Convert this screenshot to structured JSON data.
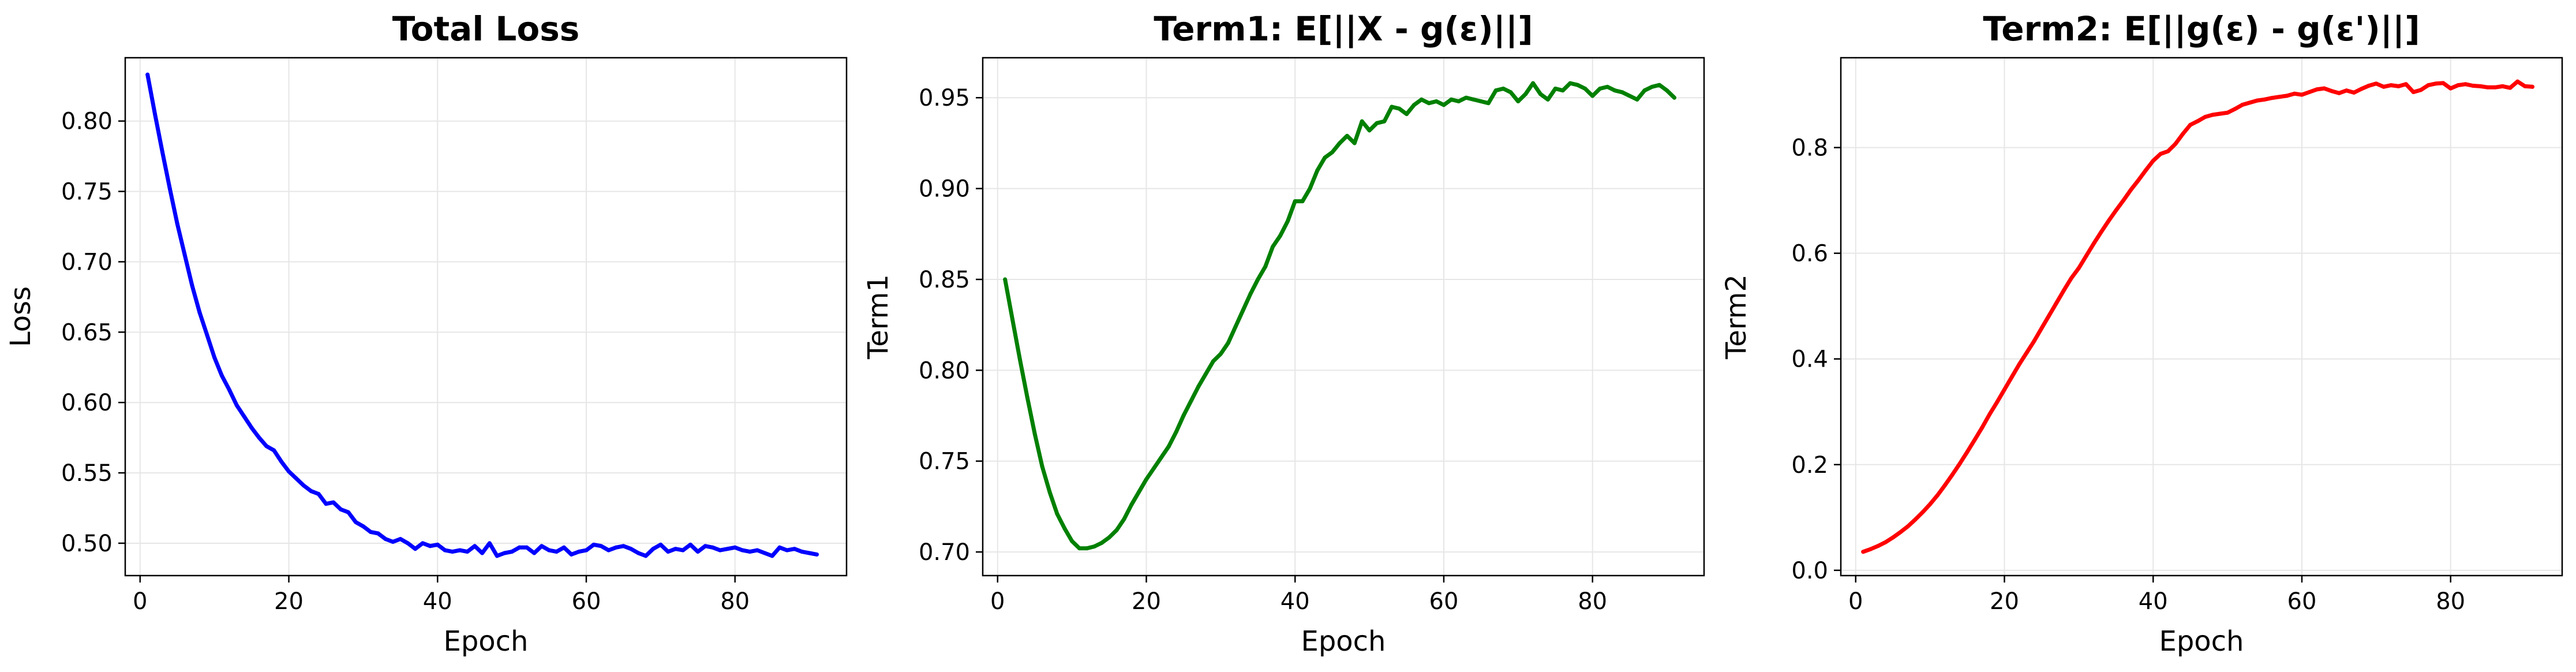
{
  "chart_data": [
    {
      "type": "line",
      "title": "Total Loss",
      "xlabel": "Epoch",
      "ylabel": "Loss",
      "xlim": [
        -2,
        95
      ],
      "ylim": [
        0.477,
        0.845
      ],
      "xticks": [
        0,
        20,
        40,
        60,
        80
      ],
      "yticks": [
        0.5,
        0.55,
        0.6,
        0.65,
        0.7,
        0.75,
        0.8
      ],
      "ytick_labels": [
        "0.50",
        "0.55",
        "0.60",
        "0.65",
        "0.70",
        "0.75",
        "0.80"
      ],
      "grid": true,
      "series": [
        {
          "color": "#0000ff",
          "x": [
            1,
            2,
            3,
            4,
            5,
            6,
            7,
            8,
            9,
            10,
            11,
            12,
            13,
            14,
            15,
            16,
            17,
            18,
            19,
            20,
            21,
            22,
            23,
            24,
            25,
            26,
            27,
            28,
            29,
            30,
            31,
            32,
            33,
            34,
            35,
            36,
            37,
            38,
            39,
            40,
            41,
            42,
            43,
            44,
            45,
            46,
            47,
            48,
            49,
            50,
            51,
            52,
            53,
            54,
            55,
            56,
            57,
            58,
            59,
            60,
            61,
            62,
            63,
            64,
            65,
            66,
            67,
            68,
            69,
            70,
            71,
            72,
            73,
            74,
            75,
            76,
            77,
            78,
            79,
            80,
            81,
            82,
            83,
            84,
            85,
            86,
            87,
            88,
            89,
            90,
            91
          ],
          "values": [
            0.833,
            0.805,
            0.778,
            0.752,
            0.727,
            0.705,
            0.683,
            0.664,
            0.648,
            0.632,
            0.619,
            0.609,
            0.598,
            0.59,
            0.582,
            0.575,
            0.569,
            0.566,
            0.558,
            0.551,
            0.546,
            0.541,
            0.537,
            0.535,
            0.528,
            0.529,
            0.524,
            0.522,
            0.515,
            0.512,
            0.508,
            0.507,
            0.503,
            0.501,
            0.503,
            0.5,
            0.496,
            0.5,
            0.498,
            0.499,
            0.495,
            0.494,
            0.495,
            0.494,
            0.498,
            0.493,
            0.5,
            0.491,
            0.493,
            0.494,
            0.497,
            0.497,
            0.493,
            0.498,
            0.495,
            0.494,
            0.497,
            0.492,
            0.494,
            0.495,
            0.499,
            0.498,
            0.495,
            0.497,
            0.498,
            0.496,
            0.493,
            0.491,
            0.496,
            0.499,
            0.494,
            0.496,
            0.495,
            0.499,
            0.494,
            0.498,
            0.497,
            0.495,
            0.496,
            0.497,
            0.495,
            0.494,
            0.495,
            0.493,
            0.491,
            0.497,
            0.495,
            0.496,
            0.494,
            0.493,
            0.492
          ]
        }
      ]
    },
    {
      "type": "line",
      "title": "Term1: E[||X - g(ε)||]",
      "xlabel": "Epoch",
      "ylabel": "Term1",
      "xlim": [
        -2,
        95
      ],
      "ylim": [
        0.687,
        0.972
      ],
      "xticks": [
        0,
        20,
        40,
        60,
        80
      ],
      "yticks": [
        0.7,
        0.75,
        0.8,
        0.85,
        0.9,
        0.95
      ],
      "ytick_labels": [
        "0.70",
        "0.75",
        "0.80",
        "0.85",
        "0.90",
        "0.95"
      ],
      "grid": true,
      "series": [
        {
          "color": "#008000",
          "x": [
            1,
            2,
            3,
            4,
            5,
            6,
            7,
            8,
            9,
            10,
            11,
            12,
            13,
            14,
            15,
            16,
            17,
            18,
            19,
            20,
            21,
            22,
            23,
            24,
            25,
            26,
            27,
            28,
            29,
            30,
            31,
            32,
            33,
            34,
            35,
            36,
            37,
            38,
            39,
            40,
            41,
            42,
            43,
            44,
            45,
            46,
            47,
            48,
            49,
            50,
            51,
            52,
            53,
            54,
            55,
            56,
            57,
            58,
            59,
            60,
            61,
            62,
            63,
            64,
            65,
            66,
            67,
            68,
            69,
            70,
            71,
            72,
            73,
            74,
            75,
            76,
            77,
            78,
            79,
            80,
            81,
            82,
            83,
            84,
            85,
            86,
            87,
            88,
            89,
            90,
            91
          ],
          "values": [
            0.85,
            0.828,
            0.806,
            0.785,
            0.765,
            0.747,
            0.733,
            0.721,
            0.713,
            0.706,
            0.702,
            0.702,
            0.703,
            0.705,
            0.708,
            0.712,
            0.718,
            0.726,
            0.733,
            0.74,
            0.746,
            0.752,
            0.758,
            0.766,
            0.775,
            0.783,
            0.791,
            0.798,
            0.805,
            0.809,
            0.815,
            0.824,
            0.833,
            0.842,
            0.85,
            0.857,
            0.868,
            0.874,
            0.882,
            0.893,
            0.893,
            0.9,
            0.91,
            0.917,
            0.92,
            0.925,
            0.929,
            0.925,
            0.937,
            0.932,
            0.936,
            0.937,
            0.945,
            0.944,
            0.941,
            0.946,
            0.949,
            0.947,
            0.948,
            0.946,
            0.949,
            0.948,
            0.95,
            0.949,
            0.948,
            0.947,
            0.954,
            0.955,
            0.953,
            0.948,
            0.952,
            0.958,
            0.952,
            0.949,
            0.955,
            0.954,
            0.958,
            0.957,
            0.955,
            0.951,
            0.955,
            0.956,
            0.954,
            0.953,
            0.951,
            0.949,
            0.954,
            0.956,
            0.957,
            0.954,
            0.95
          ]
        }
      ]
    },
    {
      "type": "line",
      "title": "Term2: E[||g(ε) - g(ε')||]",
      "xlabel": "Epoch",
      "ylabel": "Term2",
      "xlim": [
        -2,
        95
      ],
      "ylim": [
        -0.01,
        0.97
      ],
      "xticks": [
        0,
        20,
        40,
        60,
        80
      ],
      "yticks": [
        0.0,
        0.2,
        0.4,
        0.6,
        0.8
      ],
      "ytick_labels": [
        "0.0",
        "0.2",
        "0.4",
        "0.6",
        "0.8"
      ],
      "grid": true,
      "series": [
        {
          "color": "#ff0000",
          "x": [
            1,
            2,
            3,
            4,
            5,
            6,
            7,
            8,
            9,
            10,
            11,
            12,
            13,
            14,
            15,
            16,
            17,
            18,
            19,
            20,
            21,
            22,
            23,
            24,
            25,
            26,
            27,
            28,
            29,
            30,
            31,
            32,
            33,
            34,
            35,
            36,
            37,
            38,
            39,
            40,
            41,
            42,
            43,
            44,
            45,
            46,
            47,
            48,
            49,
            50,
            51,
            52,
            53,
            54,
            55,
            56,
            57,
            58,
            59,
            60,
            61,
            62,
            63,
            64,
            65,
            66,
            67,
            68,
            69,
            70,
            71,
            72,
            73,
            74,
            75,
            76,
            77,
            78,
            79,
            80,
            81,
            82,
            83,
            84,
            85,
            86,
            87,
            88,
            89,
            90,
            91
          ],
          "values": [
            0.035,
            0.04,
            0.046,
            0.053,
            0.062,
            0.072,
            0.083,
            0.096,
            0.11,
            0.125,
            0.142,
            0.161,
            0.181,
            0.202,
            0.224,
            0.247,
            0.27,
            0.295,
            0.318,
            0.342,
            0.366,
            0.39,
            0.412,
            0.434,
            0.458,
            0.482,
            0.506,
            0.53,
            0.553,
            0.572,
            0.595,
            0.618,
            0.64,
            0.661,
            0.681,
            0.7,
            0.72,
            0.738,
            0.757,
            0.775,
            0.788,
            0.793,
            0.807,
            0.826,
            0.843,
            0.85,
            0.858,
            0.862,
            0.864,
            0.866,
            0.873,
            0.881,
            0.885,
            0.889,
            0.891,
            0.894,
            0.896,
            0.898,
            0.902,
            0.9,
            0.905,
            0.91,
            0.912,
            0.907,
            0.903,
            0.908,
            0.904,
            0.911,
            0.917,
            0.921,
            0.915,
            0.918,
            0.916,
            0.92,
            0.905,
            0.909,
            0.918,
            0.921,
            0.922,
            0.912,
            0.918,
            0.92,
            0.917,
            0.916,
            0.914,
            0.914,
            0.916,
            0.913,
            0.925,
            0.916,
            0.915
          ]
        }
      ]
    }
  ]
}
